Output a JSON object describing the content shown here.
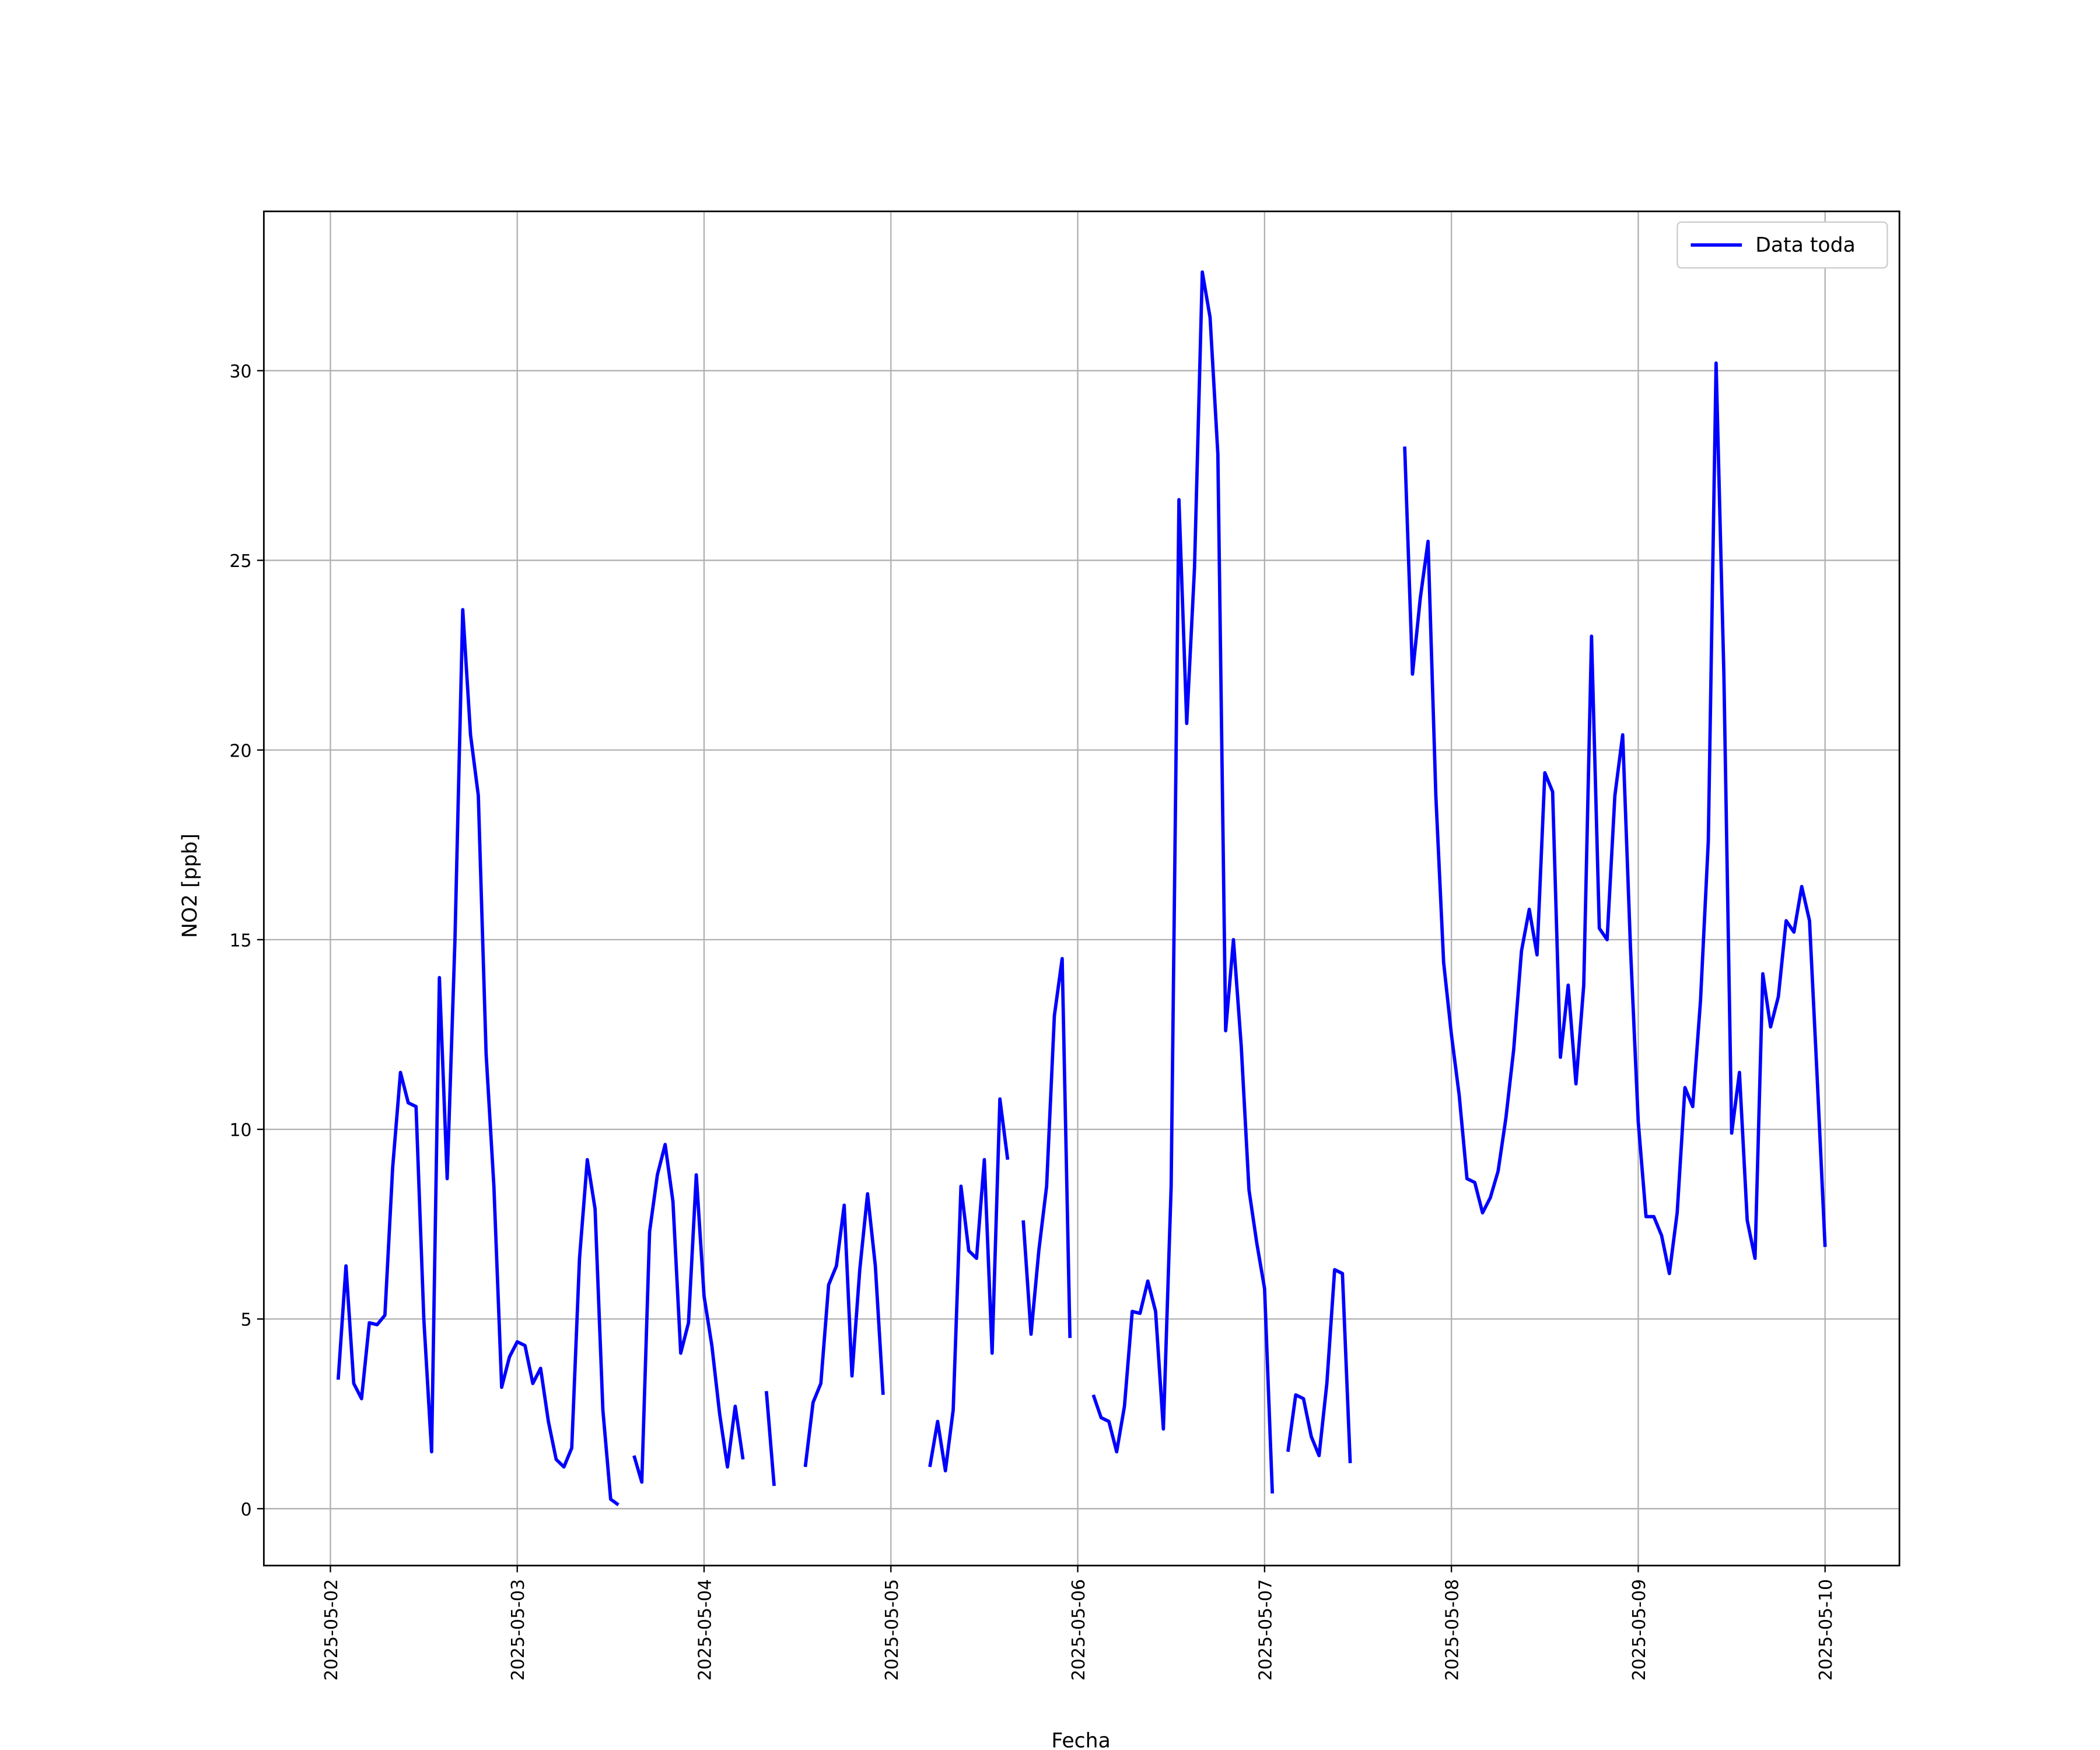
{
  "chart_data": {
    "type": "line",
    "xlabel": "Fecha",
    "ylabel": "NO2 [ppb]",
    "legend": "upper right",
    "grid": true,
    "xlim": [
      "2025-05-01 15:27",
      "2025-05-10 09:33"
    ],
    "xticks": [
      "2025-05-02",
      "2025-05-03",
      "2025-05-04",
      "2025-05-05",
      "2025-05-06",
      "2025-05-07",
      "2025-05-08",
      "2025-05-09",
      "2025-05-10"
    ],
    "ylim": [
      -1.5,
      34.2
    ],
    "yticks": [
      0,
      5,
      10,
      15,
      20,
      25,
      30
    ],
    "x": [
      "2025-05-02 01:00",
      "2025-05-02 02:00",
      "2025-05-02 03:00",
      "2025-05-02 04:00",
      "2025-05-02 05:00",
      "2025-05-02 06:00",
      "2025-05-02 07:00",
      "2025-05-02 08:00",
      "2025-05-02 09:00",
      "2025-05-02 10:00",
      "2025-05-02 11:00",
      "2025-05-02 12:00",
      "2025-05-02 13:00",
      "2025-05-02 14:00",
      "2025-05-02 15:00",
      "2025-05-02 16:00",
      "2025-05-02 17:00",
      "2025-05-02 18:00",
      "2025-05-02 19:00",
      "2025-05-02 20:00",
      "2025-05-02 21:00",
      "2025-05-02 22:00",
      "2025-05-02 23:00",
      "2025-05-03 00:00",
      "2025-05-03 01:00",
      "2025-05-03 02:00",
      "2025-05-03 03:00",
      "2025-05-03 04:00",
      "2025-05-03 05:00",
      "2025-05-03 06:00",
      "2025-05-03 07:00",
      "2025-05-03 08:00",
      "2025-05-03 09:00",
      "2025-05-03 10:00",
      "2025-05-03 11:00",
      "2025-05-03 12:00",
      "2025-05-03 13:00",
      "2025-05-03 14:00",
      "2025-05-03 15:00",
      "2025-05-03 16:00",
      "2025-05-03 17:00",
      "2025-05-03 18:00",
      "2025-05-03 19:00",
      "2025-05-03 20:00",
      "2025-05-03 21:00",
      "2025-05-03 22:00",
      "2025-05-03 23:00",
      "2025-05-04 00:00",
      "2025-05-04 01:00",
      "2025-05-04 02:00",
      "2025-05-04 03:00",
      "2025-05-04 04:00",
      "2025-05-04 05:00",
      "2025-05-04 06:00",
      "2025-05-04 07:00",
      "2025-05-04 08:00",
      "2025-05-04 09:00",
      "2025-05-04 10:00",
      "2025-05-04 11:00",
      "2025-05-04 12:00",
      "2025-05-04 13:00",
      "2025-05-04 14:00",
      "2025-05-04 15:00",
      "2025-05-04 16:00",
      "2025-05-04 17:00",
      "2025-05-04 18:00",
      "2025-05-04 19:00",
      "2025-05-04 20:00",
      "2025-05-04 21:00",
      "2025-05-04 22:00",
      "2025-05-04 23:00",
      "2025-05-05 00:00",
      "2025-05-05 01:00",
      "2025-05-05 02:00",
      "2025-05-05 03:00",
      "2025-05-05 04:00",
      "2025-05-05 05:00",
      "2025-05-05 06:00",
      "2025-05-05 07:00",
      "2025-05-05 08:00",
      "2025-05-05 09:00",
      "2025-05-05 10:00",
      "2025-05-05 11:00",
      "2025-05-05 12:00",
      "2025-05-05 13:00",
      "2025-05-05 14:00",
      "2025-05-05 15:00",
      "2025-05-05 16:00",
      "2025-05-05 17:00",
      "2025-05-05 18:00",
      "2025-05-05 19:00",
      "2025-05-05 20:00",
      "2025-05-05 21:00",
      "2025-05-05 22:00",
      "2025-05-05 23:00",
      "2025-05-06 00:00",
      "2025-05-06 01:00",
      "2025-05-06 02:00",
      "2025-05-06 03:00",
      "2025-05-06 04:00",
      "2025-05-06 05:00",
      "2025-05-06 06:00",
      "2025-05-06 07:00",
      "2025-05-06 08:00",
      "2025-05-06 09:00",
      "2025-05-06 10:00",
      "2025-05-06 11:00",
      "2025-05-06 12:00",
      "2025-05-06 13:00",
      "2025-05-06 14:00",
      "2025-05-06 15:00",
      "2025-05-06 16:00",
      "2025-05-06 17:00",
      "2025-05-06 18:00",
      "2025-05-06 19:00",
      "2025-05-06 20:00",
      "2025-05-06 21:00",
      "2025-05-06 22:00",
      "2025-05-06 23:00",
      "2025-05-07 00:00",
      "2025-05-07 01:00",
      "2025-05-07 02:00",
      "2025-05-07 03:00",
      "2025-05-07 04:00",
      "2025-05-07 05:00",
      "2025-05-07 06:00",
      "2025-05-07 07:00",
      "2025-05-07 08:00",
      "2025-05-07 09:00",
      "2025-05-07 10:00",
      "2025-05-07 11:00",
      "2025-05-07 12:00",
      "2025-05-07 13:00",
      "2025-05-07 14:00",
      "2025-05-07 15:00",
      "2025-05-07 16:00",
      "2025-05-07 17:00",
      "2025-05-07 18:00",
      "2025-05-07 19:00",
      "2025-05-07 20:00",
      "2025-05-07 21:00",
      "2025-05-07 22:00",
      "2025-05-07 23:00",
      "2025-05-08 00:00",
      "2025-05-08 01:00",
      "2025-05-08 02:00",
      "2025-05-08 03:00",
      "2025-05-08 04:00",
      "2025-05-08 05:00",
      "2025-05-08 06:00",
      "2025-05-08 07:00",
      "2025-05-08 08:00",
      "2025-05-08 09:00",
      "2025-05-08 10:00",
      "2025-05-08 11:00",
      "2025-05-08 12:00",
      "2025-05-08 13:00",
      "2025-05-08 14:00",
      "2025-05-08 15:00",
      "2025-05-08 16:00",
      "2025-05-08 17:00",
      "2025-05-08 18:00",
      "2025-05-08 19:00",
      "2025-05-08 20:00",
      "2025-05-08 21:00",
      "2025-05-08 22:00",
      "2025-05-08 23:00",
      "2025-05-09 00:00",
      "2025-05-09 01:00",
      "2025-05-09 02:00",
      "2025-05-09 03:00",
      "2025-05-09 04:00",
      "2025-05-09 05:00",
      "2025-05-09 06:00",
      "2025-05-09 07:00",
      "2025-05-09 08:00",
      "2025-05-09 09:00",
      "2025-05-09 10:00",
      "2025-05-09 11:00",
      "2025-05-09 12:00",
      "2025-05-09 13:00",
      "2025-05-09 14:00",
      "2025-05-09 15:00",
      "2025-05-09 16:00",
      "2025-05-09 17:00",
      "2025-05-09 18:00",
      "2025-05-09 19:00",
      "2025-05-09 20:00",
      "2025-05-09 21:00",
      "2025-05-09 22:00",
      "2025-05-09 23:00",
      "2025-05-10 00:00"
    ],
    "series": [
      {
        "name": "Data toda",
        "color": "#0000ff",
        "values": [
          3.4,
          6.4,
          3.3,
          2.9,
          4.9,
          4.85,
          5.1,
          9.0,
          11.5,
          10.7,
          10.6,
          5.0,
          1.5,
          14.0,
          8.7,
          15.0,
          23.7,
          20.4,
          18.8,
          12.0,
          8.5,
          3.2,
          4.0,
          4.4,
          4.3,
          3.3,
          3.7,
          2.3,
          1.3,
          1.1,
          1.6,
          6.6,
          9.2,
          7.9,
          2.6,
          0.25,
          0.1,
          null,
          1.4,
          0.7,
          7.3,
          8.8,
          9.6,
          8.1,
          4.1,
          4.9,
          8.8,
          5.6,
          4.3,
          2.5,
          1.1,
          2.7,
          1.3,
          null,
          null,
          3.1,
          0.6,
          null,
          null,
          null,
          1.1,
          2.8,
          3.3,
          5.9,
          6.4,
          8.0,
          3.5,
          6.3,
          8.3,
          6.4,
          3.0,
          null,
          null,
          null,
          null,
          null,
          1.1,
          2.3,
          1.0,
          2.6,
          8.5,
          6.8,
          6.6,
          9.2,
          4.1,
          10.8,
          9.2,
          null,
          7.6,
          4.6,
          6.8,
          8.5,
          13.0,
          14.5,
          4.5,
          null,
          null,
          3.0,
          2.4,
          2.3,
          1.5,
          2.7,
          5.2,
          5.15,
          6.0,
          5.2,
          2.1,
          8.5,
          26.6,
          20.7,
          24.8,
          32.6,
          31.4,
          27.8,
          12.6,
          15.0,
          12.2,
          8.4,
          7.0,
          5.8,
          0.4,
          null,
          1.5,
          3.0,
          2.9,
          1.9,
          1.4,
          3.3,
          6.3,
          6.2,
          1.2,
          null,
          null,
          null,
          null,
          null,
          null,
          28.0,
          22.0,
          24.0,
          25.5,
          18.8,
          14.4,
          12.5,
          10.9,
          8.7,
          8.6,
          7.8,
          8.2,
          8.9,
          10.3,
          12.1,
          14.7,
          15.8,
          14.6,
          19.4,
          18.9,
          11.9,
          13.8,
          11.2,
          13.8,
          23.0,
          15.3,
          15.0,
          18.8,
          20.4,
          14.8,
          10.2,
          7.7,
          7.7,
          7.2,
          6.2,
          7.8,
          11.1,
          10.6,
          13.4,
          17.6,
          30.2,
          22.0,
          9.9,
          11.5,
          7.6,
          6.6,
          14.1,
          12.7,
          13.5,
          15.5,
          15.2,
          16.4,
          15.5,
          11.3,
          6.9
        ]
      }
    ]
  }
}
